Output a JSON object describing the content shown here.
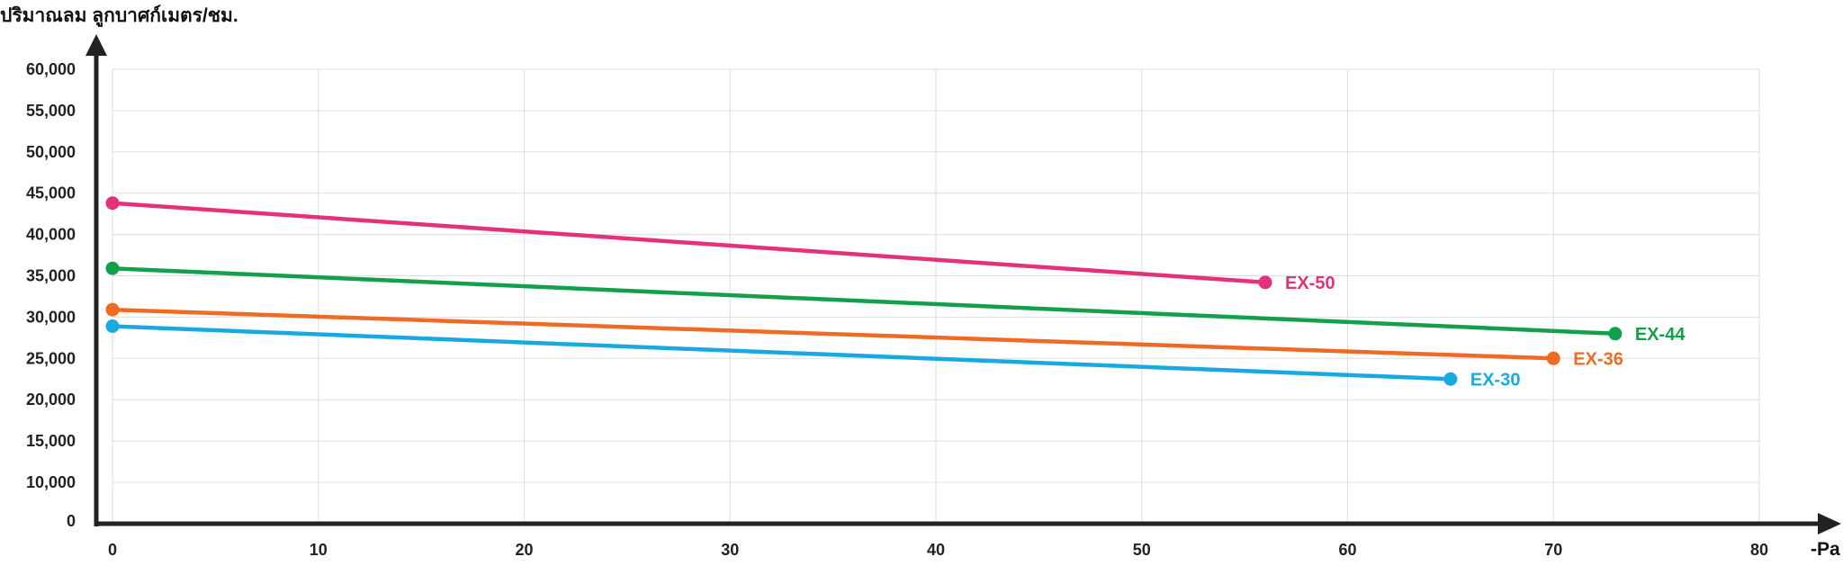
{
  "chart_data": {
    "type": "line",
    "ylabel": "ปริมาณลม ลูกบาศก์เมตร/ชม.",
    "xlabel": "-Pa",
    "xlim": [
      0,
      80
    ],
    "ylim": [
      0,
      60000
    ],
    "x_ticks": [
      "0",
      "10",
      "20",
      "30",
      "40",
      "50",
      "60",
      "70",
      "80"
    ],
    "y_ticks": [
      "0",
      "10,000",
      "15,000",
      "20,000",
      "25,000",
      "30,000",
      "35,000",
      "40,000",
      "45,000",
      "50,000",
      "55,000",
      "60,000"
    ],
    "y_tick_values": [
      0,
      10000,
      15000,
      20000,
      25000,
      30000,
      35000,
      40000,
      45000,
      50000,
      55000,
      60000
    ],
    "grid": true,
    "legend": "labels at line ends",
    "series": [
      {
        "name": "EX-50",
        "color": "#e5317a",
        "x": [
          0,
          56
        ],
        "y": [
          43800,
          34200
        ]
      },
      {
        "name": "EX-44",
        "color": "#13a04b",
        "x": [
          0,
          73
        ],
        "y": [
          35900,
          28000
        ]
      },
      {
        "name": "EX-36",
        "color": "#ee6a25",
        "x": [
          0,
          70
        ],
        "y": [
          30900,
          25000
        ]
      },
      {
        "name": "EX-30",
        "color": "#18a9e1",
        "x": [
          0,
          65
        ],
        "y": [
          28900,
          22500
        ]
      }
    ]
  }
}
